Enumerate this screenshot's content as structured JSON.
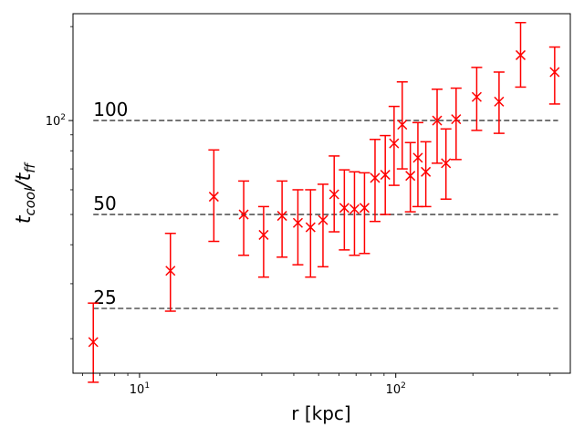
{
  "chart_data": {
    "type": "scatter",
    "xlabel": "r [kpc]",
    "ylabel_main": "t",
    "ylabel_sub1": "cool",
    "ylabel_slash": "/t",
    "ylabel_sub2": "ff",
    "xscale": "log",
    "yscale": "log",
    "xlim": [
      5.5,
      480
    ],
    "ylim": [
      15.5,
      220
    ],
    "grid": false,
    "x_ticks": [
      {
        "value": 10,
        "base": "10",
        "exp": "1"
      },
      {
        "value": 100,
        "base": "10",
        "exp": "2"
      }
    ],
    "y_ticks": [
      {
        "value": 100,
        "base": "10",
        "exp": "2"
      }
    ],
    "reference_lines": [
      {
        "y": 100,
        "label": "100",
        "xmin": 6.6,
        "xmax": 430
      },
      {
        "y": 50,
        "label": "50",
        "xmin": 6.6,
        "xmax": 430
      },
      {
        "y": 25,
        "label": "25",
        "xmin": 6.6,
        "xmax": 430
      }
    ],
    "series": [
      {
        "marker": "x",
        "color": "#ff0000",
        "points": [
          {
            "x": 6.6,
            "y": 19.5,
            "lo": 14.5,
            "hi": 26.0
          },
          {
            "x": 13.2,
            "y": 33.0,
            "lo": 24.5,
            "hi": 43.5
          },
          {
            "x": 19.5,
            "y": 57.0,
            "lo": 41.0,
            "hi": 80.5
          },
          {
            "x": 25.5,
            "y": 50.0,
            "lo": 37.0,
            "hi": 64.0
          },
          {
            "x": 30.5,
            "y": 43.0,
            "lo": 31.5,
            "hi": 53.0
          },
          {
            "x": 36.0,
            "y": 49.5,
            "lo": 36.5,
            "hi": 64.0
          },
          {
            "x": 41.5,
            "y": 47.0,
            "lo": 34.5,
            "hi": 60.0
          },
          {
            "x": 46.5,
            "y": 45.5,
            "lo": 31.5,
            "hi": 60.0
          },
          {
            "x": 52.0,
            "y": 48.0,
            "lo": 34.0,
            "hi": 62.5
          },
          {
            "x": 57.5,
            "y": 58.0,
            "lo": 44.0,
            "hi": 77.0
          },
          {
            "x": 63.0,
            "y": 52.5,
            "lo": 38.5,
            "hi": 69.5
          },
          {
            "x": 69.0,
            "y": 52.0,
            "lo": 37.0,
            "hi": 68.5
          },
          {
            "x": 75.5,
            "y": 52.5,
            "lo": 37.5,
            "hi": 68.0
          },
          {
            "x": 83.0,
            "y": 65.5,
            "lo": 47.5,
            "hi": 87.0
          },
          {
            "x": 91.0,
            "y": 67.0,
            "lo": 50.0,
            "hi": 89.5
          },
          {
            "x": 98.5,
            "y": 84.5,
            "lo": 62.0,
            "hi": 111.0
          },
          {
            "x": 106.0,
            "y": 97.0,
            "lo": 70.0,
            "hi": 133.0
          },
          {
            "x": 114.0,
            "y": 66.5,
            "lo": 51.0,
            "hi": 85.0
          },
          {
            "x": 122.0,
            "y": 76.0,
            "lo": 53.0,
            "hi": 98.5
          },
          {
            "x": 131.0,
            "y": 68.5,
            "lo": 53.0,
            "hi": 85.5
          },
          {
            "x": 145.0,
            "y": 100.0,
            "lo": 73.0,
            "hi": 126.0
          },
          {
            "x": 157.0,
            "y": 73.0,
            "lo": 56.0,
            "hi": 94.0
          },
          {
            "x": 172.0,
            "y": 101.0,
            "lo": 75.0,
            "hi": 127.0
          },
          {
            "x": 207.0,
            "y": 119.0,
            "lo": 93.0,
            "hi": 148.0
          },
          {
            "x": 253.0,
            "y": 115.0,
            "lo": 91.0,
            "hi": 143.0
          },
          {
            "x": 307.0,
            "y": 162.0,
            "lo": 128.0,
            "hi": 206.0
          },
          {
            "x": 417.0,
            "y": 143.0,
            "lo": 113.0,
            "hi": 172.0
          }
        ]
      }
    ]
  }
}
